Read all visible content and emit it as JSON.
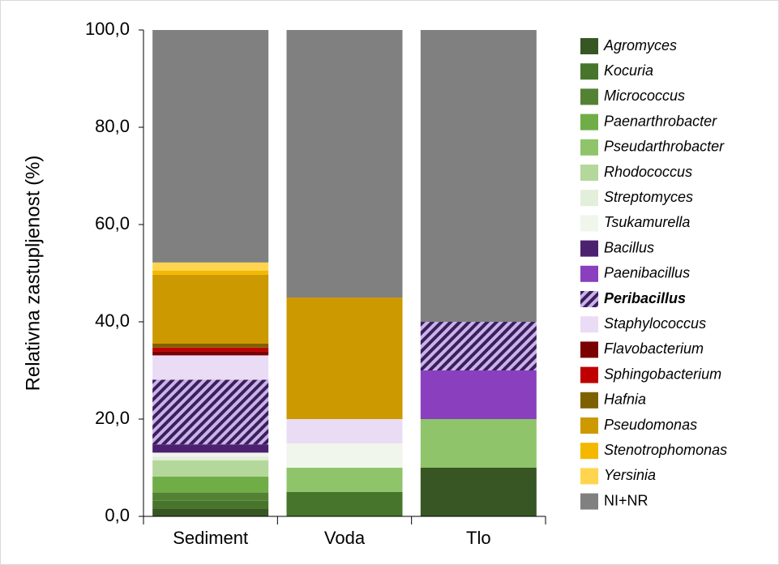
{
  "chart_data": {
    "type": "stacked_bar",
    "y_label": "Relativna zastupljenost (%)",
    "categories": [
      "Sediment",
      "Voda",
      "Tlo"
    ],
    "ylim": [
      0,
      100
    ],
    "yticks": [
      {
        "value": 0,
        "label": "0,0"
      },
      {
        "value": 20,
        "label": "20,0"
      },
      {
        "value": 40,
        "label": "40,0"
      },
      {
        "value": 60,
        "label": "60,0"
      },
      {
        "value": 80,
        "label": "80,0"
      },
      {
        "value": 100,
        "label": "100,0"
      }
    ],
    "series": [
      {
        "name": "Agromyces",
        "color": "#375623",
        "values": [
          1.5,
          0,
          10
        ]
      },
      {
        "name": "Kocuria",
        "color": "#47752c",
        "values": [
          1.7,
          5,
          0
        ]
      },
      {
        "name": "Micrococcus",
        "color": "#548235",
        "values": [
          1.7,
          0,
          0
        ]
      },
      {
        "name": "Paenarthrobacter",
        "color": "#70ad47",
        "values": [
          3.3,
          0,
          0
        ]
      },
      {
        "name": "Pseudarthrobacter",
        "color": "#8fc46a",
        "values": [
          0,
          5,
          10
        ]
      },
      {
        "name": "Rhodococcus",
        "color": "#b4d89c",
        "values": [
          3.3,
          0,
          0
        ]
      },
      {
        "name": "Streptomyces",
        "color": "#e2efda",
        "values": [
          0.8,
          0,
          0
        ]
      },
      {
        "name": "Tsukamurella",
        "color": "#f0f6ec",
        "values": [
          0.8,
          5,
          0
        ]
      },
      {
        "name": "Bacillus",
        "color": "#4b2170",
        "values": [
          1.7,
          0,
          0
        ]
      },
      {
        "name": "Paenibacillus",
        "color": "#8a3fbf",
        "values": [
          0,
          0,
          10
        ]
      },
      {
        "name": "Peribacillus",
        "color": "#c9b3e8",
        "hatch": "#3a1f5c",
        "bold": true,
        "values": [
          13.3,
          0,
          10
        ]
      },
      {
        "name": "Staphylococcus",
        "color": "#ebdcf5",
        "values": [
          5,
          5,
          0
        ]
      },
      {
        "name": "Flavobacterium",
        "color": "#7b0000",
        "values": [
          0.8,
          0,
          0
        ]
      },
      {
        "name": "Sphingobacterium",
        "color": "#c00000",
        "values": [
          0.8,
          0,
          0
        ]
      },
      {
        "name": "Hafnia",
        "color": "#7f6000",
        "values": [
          0.8,
          0,
          0
        ]
      },
      {
        "name": "Pseudomonas",
        "color": "#cc9900",
        "values": [
          14.2,
          25,
          0
        ]
      },
      {
        "name": "Stenotrophomonas",
        "color": "#f4b800",
        "values": [
          0.8,
          0,
          0
        ]
      },
      {
        "name": "Yersinia",
        "color": "#ffd54f",
        "values": [
          1.7,
          0,
          0
        ]
      },
      {
        "name": "NI+NR",
        "color": "#808080",
        "italic": false,
        "values": [
          47.8,
          55,
          60
        ]
      }
    ]
  }
}
